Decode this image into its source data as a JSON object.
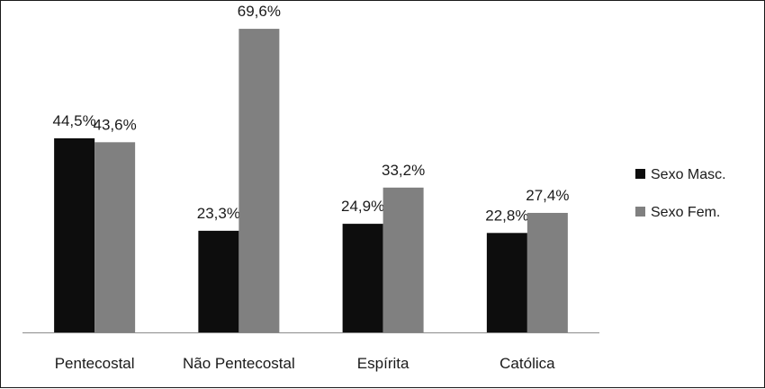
{
  "chart_data": {
    "type": "bar",
    "categories": [
      "Pentecostal",
      "Não Pentecostal",
      "Espírita",
      "Católica"
    ],
    "series": [
      {
        "name": "Sexo Masc.",
        "color": "#0d0d0d",
        "values": [
          44.5,
          23.3,
          24.9,
          22.8
        ],
        "labels": [
          "44,5%",
          "23,3%",
          "24,9%",
          "22,8%"
        ]
      },
      {
        "name": "Sexo Fem.",
        "color": "#808080",
        "values": [
          43.6,
          69.6,
          33.2,
          27.4
        ],
        "labels": [
          "43,6%",
          "69,6%",
          "33,2%",
          "27,4%"
        ]
      }
    ],
    "ylim": [
      0,
      76
    ],
    "grid": false,
    "legend": "right"
  }
}
